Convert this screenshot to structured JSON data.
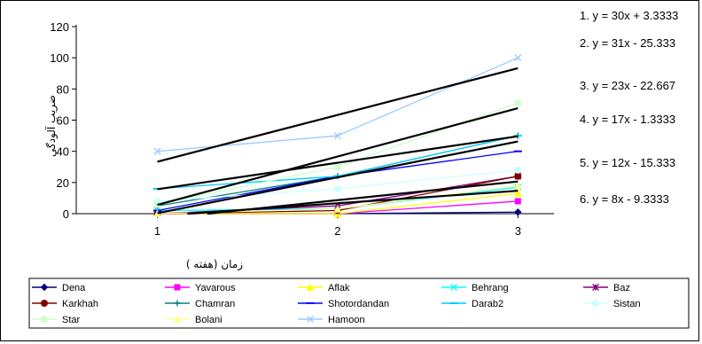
{
  "chart_data": {
    "type": "line",
    "xlabel": "زمان (هفته )",
    "ylabel": "ضریب آلودگی",
    "x": [
      1,
      2,
      3
    ],
    "xlim": [
      0.55,
      3.2
    ],
    "ylim": [
      0,
      120
    ],
    "yticks": [
      0,
      20,
      40,
      60,
      80,
      100,
      120
    ],
    "xticks": [
      1,
      2,
      3
    ],
    "grid": false,
    "legend_position": "bottom",
    "series": [
      {
        "name": "Dena",
        "values": [
          0,
          0,
          1
        ],
        "color": "#000080",
        "marker": "diamond"
      },
      {
        "name": "Yavarous",
        "values": [
          0,
          0,
          8
        ],
        "color": "#ff00ff",
        "marker": "square"
      },
      {
        "name": "Aflak",
        "values": [
          0,
          0,
          13
        ],
        "color": "#ffff00",
        "marker": "triangle"
      },
      {
        "name": "Behrang",
        "values": [
          2,
          3,
          17
        ],
        "color": "#00ffff",
        "marker": "x"
      },
      {
        "name": "Baz",
        "values": [
          0,
          5,
          24
        ],
        "color": "#800080",
        "marker": "star"
      },
      {
        "name": "Karkhah",
        "values": [
          0,
          2,
          24
        ],
        "color": "#800000",
        "marker": "circle"
      },
      {
        "name": "Chamran",
        "values": [
          5,
          24,
          50
        ],
        "color": "#008080",
        "marker": "plus"
      },
      {
        "name": "Shotordandan",
        "values": [
          2,
          24,
          40
        ],
        "color": "#0000ff",
        "marker": "dash"
      },
      {
        "name": "Darab2",
        "values": [
          16,
          24,
          50
        ],
        "color": "#00ccff",
        "marker": "dash"
      },
      {
        "name": "Sistan",
        "values": [
          8,
          16,
          28
        ],
        "color": "#ccffff",
        "marker": "circle"
      },
      {
        "name": "Star",
        "values": [
          6,
          30,
          71
        ],
        "color": "#ccffcc",
        "marker": "square"
      },
      {
        "name": "Bolani",
        "values": [
          0,
          3,
          18
        ],
        "color": "#ffff99",
        "marker": "triangle"
      },
      {
        "name": "Hamoon",
        "values": [
          40,
          50,
          100
        ],
        "color": "#99ccff",
        "marker": "x"
      }
    ],
    "trendlines": [
      {
        "label": "1. y = 30x + 3.3333",
        "slope": 30,
        "intercept": 3.3333
      },
      {
        "label": "2. y = 31x - 25.333",
        "slope": 31,
        "intercept": -25.333
      },
      {
        "label": "3. y = 23x - 22.667",
        "slope": 23,
        "intercept": -22.667
      },
      {
        "label": "4. y = 17x - 1.3333",
        "slope": 17,
        "intercept": -1.3333
      },
      {
        "label": "5. y = 12x - 15.333",
        "slope": 12,
        "intercept": -15.333
      },
      {
        "label": "6. y = 8x - 9.3333",
        "slope": 8,
        "intercept": -9.3333
      }
    ]
  }
}
